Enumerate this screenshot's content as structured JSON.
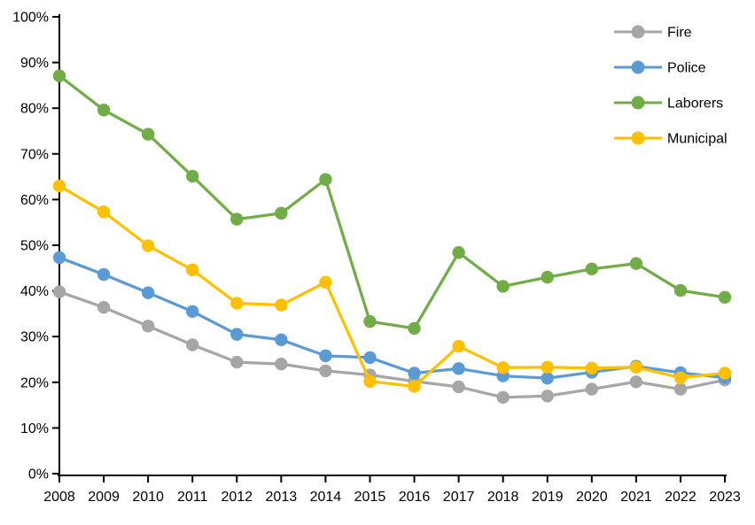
{
  "chart_data": {
    "type": "line",
    "title": "",
    "xlabel": "",
    "ylabel": "",
    "categories": [
      "2008",
      "2009",
      "2010",
      "2011",
      "2012",
      "2013",
      "2014",
      "2015",
      "2016",
      "2017",
      "2018",
      "2019",
      "2020",
      "2021",
      "2022",
      "2023"
    ],
    "series": [
      {
        "name": "Fire",
        "color": "#A6A6A6",
        "values": [
          39.8,
          36.4,
          32.3,
          28.2,
          24.4,
          24.0,
          22.5,
          21.6,
          20.2,
          19.0,
          16.7,
          17.0,
          18.5,
          20.1,
          18.5,
          20.5
        ]
      },
      {
        "name": "Police",
        "color": "#5B9BD5",
        "values": [
          47.3,
          43.6,
          39.6,
          35.5,
          30.5,
          29.3,
          25.8,
          25.4,
          22.0,
          23.0,
          21.4,
          20.9,
          22.2,
          23.5,
          22.1,
          21.0
        ]
      },
      {
        "name": "Laborers",
        "color": "#70AD47",
        "values": [
          87.1,
          79.6,
          74.3,
          65.1,
          55.7,
          57.0,
          64.4,
          33.3,
          31.8,
          48.4,
          41.0,
          43.0,
          44.8,
          46.0,
          40.1,
          38.6
        ]
      },
      {
        "name": "Municipal",
        "color": "#FFC000",
        "values": [
          63.0,
          57.3,
          49.9,
          44.6,
          37.3,
          36.9,
          41.9,
          20.2,
          19.1,
          27.9,
          23.2,
          23.3,
          23.1,
          23.3,
          21.0,
          22.0
        ]
      }
    ],
    "ylim": [
      0,
      100
    ],
    "y_tick_step": 10,
    "y_tick_labels": [
      "0%",
      "10%",
      "20%",
      "30%",
      "40%",
      "50%",
      "60%",
      "70%",
      "80%",
      "90%",
      "100%"
    ],
    "grid": false,
    "legend_position": "top-right-inside",
    "axis_color": "#000000",
    "text_color": "#000000",
    "marker": "circle"
  }
}
